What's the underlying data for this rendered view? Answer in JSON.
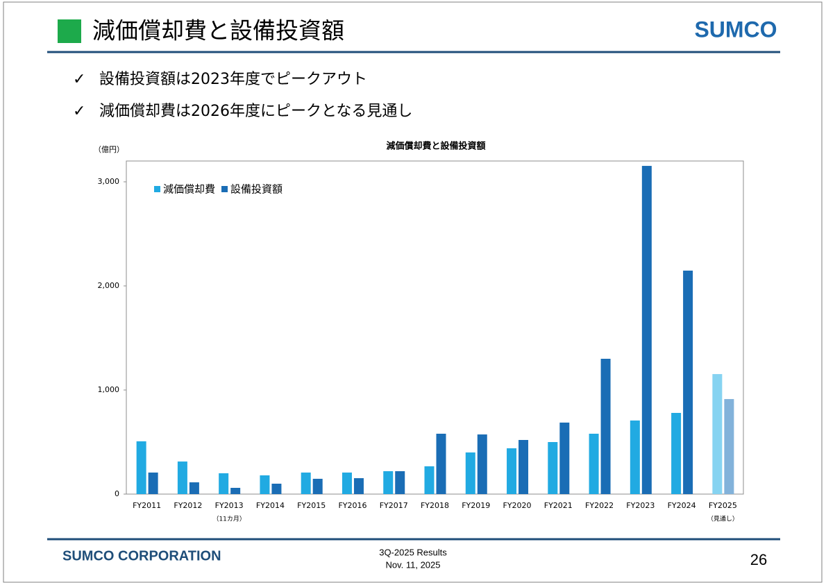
{
  "header": {
    "title": "減価償却費と設備投資額",
    "logo": "SUMCO"
  },
  "bullets": [
    "設備投資額は2023年度でピークアウト",
    "減価償却費は2026年度にピークとなる見通し"
  ],
  "footer": {
    "company": "SUMCO CORPORATION",
    "event": "3Q-2025 Results",
    "date": "Nov. 11, 2025",
    "page": "26"
  },
  "chart_data": {
    "type": "bar",
    "title": "減価償却費と設備投資額",
    "y_label": "（億円）",
    "categories": [
      "FY2011",
      "FY2012",
      "FY2013",
      "FY2014",
      "FY2015",
      "FY2016",
      "FY2017",
      "FY2018",
      "FY2019",
      "FY2020",
      "FY2021",
      "FY2022",
      "FY2023",
      "FY2024",
      "FY2025"
    ],
    "category_notes": [
      null,
      null,
      "（11カ月）",
      null,
      null,
      null,
      null,
      null,
      null,
      null,
      null,
      null,
      null,
      null,
      "（見通し）"
    ],
    "series": [
      {
        "name": "減価償却費",
        "color": "#21aae2",
        "colors": [
          "#21aae2",
          "#21aae2",
          "#21aae2",
          "#21aae2",
          "#21aae2",
          "#21aae2",
          "#21aae2",
          "#21aae2",
          "#21aae2",
          "#21aae2",
          "#21aae2",
          "#21aae2",
          "#21aae2",
          "#21aae2",
          "#86d3f1"
        ],
        "values": [
          507,
          313,
          200,
          180,
          207,
          207,
          220,
          267,
          400,
          440,
          500,
          580,
          707,
          780,
          1153
        ]
      },
      {
        "name": "設備投資額",
        "color": "#1a6db5",
        "colors": [
          "#1a6db5",
          "#1a6db5",
          "#1a6db5",
          "#1a6db5",
          "#1a6db5",
          "#1a6db5",
          "#1a6db5",
          "#1a6db5",
          "#1a6db5",
          "#1a6db5",
          "#1a6db5",
          "#1a6db5",
          "#1a6db5",
          "#1a6db5",
          "#82b2da"
        ],
        "values": [
          207,
          113,
          60,
          100,
          147,
          153,
          220,
          580,
          573,
          520,
          687,
          1300,
          3153,
          2147,
          913
        ]
      }
    ],
    "ylim": [
      0,
      3200
    ],
    "yticks": [
      0,
      {
        "value": 1000,
        "label": "1,000"
      },
      {
        "value": 2000,
        "label": "2,000"
      },
      {
        "value": 3000,
        "label": "3,000"
      }
    ],
    "grid": false,
    "legend": "top-left"
  }
}
